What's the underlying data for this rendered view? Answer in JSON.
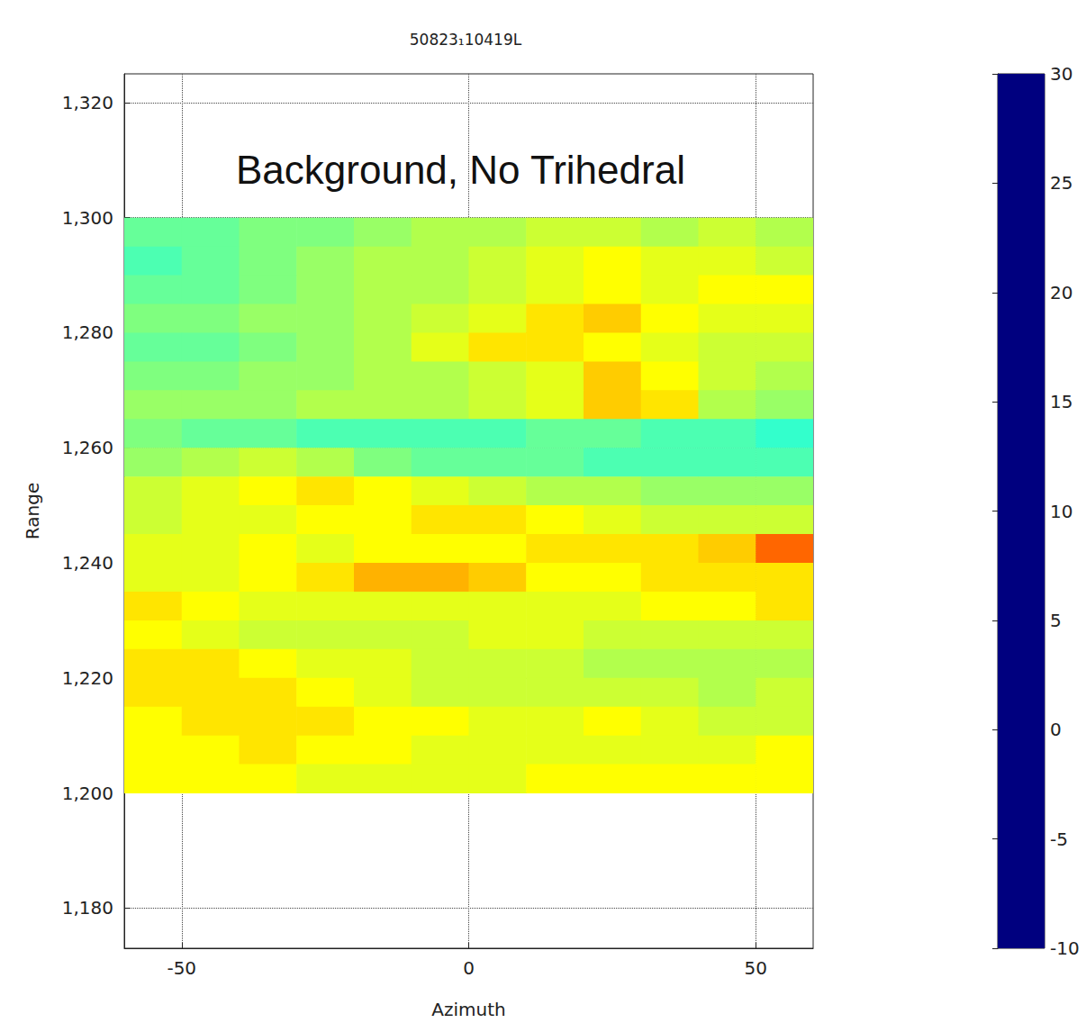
{
  "chart_data": {
    "type": "heatmap",
    "title": "50823₁10419L",
    "annotation": "Background, No Trihedral",
    "xlabel": "Azimuth",
    "ylabel": "Range",
    "xlim": [
      -60,
      60
    ],
    "ylim": [
      1173,
      1325
    ],
    "xticks": [
      -50,
      0,
      50
    ],
    "yticks": [
      1180,
      1200,
      1220,
      1240,
      1260,
      1280,
      1300,
      1320
    ],
    "grid": true,
    "x": [
      -55,
      -45,
      -35,
      -25,
      -15,
      -5,
      5,
      15,
      25,
      35,
      45,
      55
    ],
    "y": [
      1297.5,
      1292.5,
      1287.5,
      1282.5,
      1277.5,
      1272.5,
      1267.5,
      1262.5,
      1257.5,
      1252.5,
      1247.5,
      1242.5,
      1237.5,
      1232.5,
      1227.5,
      1222.5,
      1217.5,
      1212.5,
      1207.5,
      1202.5
    ],
    "values": [
      [
        9,
        9,
        10,
        10,
        11,
        12,
        12,
        13,
        13,
        12,
        13,
        12
      ],
      [
        8,
        9,
        10,
        11,
        12,
        12,
        13,
        14,
        15,
        14,
        14,
        13
      ],
      [
        9,
        9,
        10,
        11,
        12,
        12,
        13,
        14,
        15,
        14,
        15,
        15
      ],
      [
        10,
        10,
        11,
        11,
        12,
        13,
        14,
        16,
        17,
        15,
        14,
        14
      ],
      [
        9,
        9,
        10,
        11,
        12,
        14,
        16,
        16,
        15,
        14,
        13,
        13
      ],
      [
        10,
        10,
        11,
        11,
        12,
        12,
        13,
        14,
        17,
        15,
        13,
        12
      ],
      [
        11,
        11,
        11,
        12,
        12,
        12,
        13,
        14,
        17,
        16,
        12,
        11
      ],
      [
        10,
        9,
        9,
        8,
        8,
        8,
        8,
        9,
        9,
        8,
        8,
        7
      ],
      [
        11,
        12,
        13,
        12,
        10,
        9,
        9,
        9,
        8,
        8,
        8,
        8
      ],
      [
        13,
        14,
        15,
        16,
        15,
        14,
        13,
        12,
        12,
        11,
        11,
        11
      ],
      [
        13,
        14,
        14,
        15,
        15,
        16,
        16,
        15,
        14,
        13,
        13,
        13
      ],
      [
        14,
        14,
        15,
        14,
        15,
        15,
        15,
        16,
        16,
        16,
        17,
        21
      ],
      [
        14,
        14,
        15,
        16,
        18,
        18,
        17,
        15,
        15,
        16,
        16,
        16
      ],
      [
        16,
        15,
        14,
        14,
        14,
        14,
        14,
        14,
        14,
        15,
        15,
        16
      ],
      [
        15,
        14,
        13,
        13,
        13,
        13,
        14,
        14,
        13,
        13,
        13,
        13
      ],
      [
        16,
        16,
        15,
        14,
        14,
        13,
        13,
        13,
        12,
        12,
        12,
        12
      ],
      [
        16,
        16,
        16,
        15,
        14,
        13,
        13,
        13,
        13,
        13,
        12,
        13
      ],
      [
        15,
        16,
        16,
        16,
        15,
        15,
        14,
        14,
        15,
        14,
        13,
        13
      ],
      [
        15,
        15,
        16,
        15,
        15,
        14,
        14,
        14,
        14,
        14,
        14,
        15
      ],
      [
        15,
        15,
        15,
        14,
        14,
        14,
        14,
        15,
        15,
        15,
        15,
        15
      ]
    ],
    "colorbar_range": [
      -10,
      30
    ],
    "colorbar_ticks": [
      -10,
      -5,
      0,
      5,
      10,
      15,
      20,
      25,
      30
    ]
  }
}
